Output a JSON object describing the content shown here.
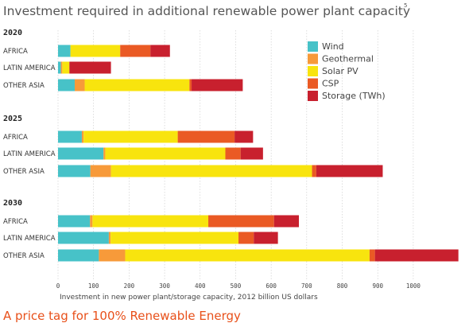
{
  "chart_data": {
    "type": "bar",
    "orientation": "horizontal",
    "stacked": true,
    "title": "Investment required in additional renewable power plant capacity",
    "footnote": "5",
    "xlabel": "Investment in new power plant/storage capacity, 2012 billion US dollars",
    "xlim": [
      0,
      1130
    ],
    "xticks": [
      "0",
      "100",
      "200",
      "300",
      "400",
      "500",
      "600",
      "700",
      "800",
      "900",
      "1000"
    ],
    "grid": true,
    "legend_position": "top-right",
    "series": [
      {
        "name": "Wind",
        "color": "#47c2c8"
      },
      {
        "name": "Geothermal",
        "color": "#f79a3a"
      },
      {
        "name": "Solar PV",
        "color": "#f8e40e"
      },
      {
        "name": "CSP",
        "color": "#ea5a24"
      },
      {
        "name": "Storage (TWh)",
        "color": "#c8202e"
      }
    ],
    "groups": [
      {
        "year": "2020",
        "rows": [
          {
            "region": "AFRICA",
            "values": [
              35,
              0,
              140,
              85,
              55
            ]
          },
          {
            "region": "LATIN AMERICA",
            "values": [
              8,
              4,
              20,
              0,
              117
            ]
          },
          {
            "region": "OTHER ASIA",
            "values": [
              47,
              28,
              295,
              6,
              144
            ]
          }
        ]
      },
      {
        "year": "2025",
        "rows": [
          {
            "region": "AFRICA",
            "values": [
              67,
              5,
              265,
              160,
              52
            ]
          },
          {
            "region": "LATIN AMERICA",
            "values": [
              128,
              5,
              338,
              43,
              63
            ]
          },
          {
            "region": "OTHER ASIA",
            "values": [
              91,
              58,
              566,
              12,
              187
            ]
          }
        ]
      },
      {
        "year": "2030",
        "rows": [
          {
            "region": "AFRICA",
            "values": [
              90,
              7,
              326,
              185,
              70
            ]
          },
          {
            "region": "LATIN AMERICA",
            "values": [
              143,
              5,
              360,
              43,
              68
            ]
          },
          {
            "region": "OTHER ASIA",
            "values": [
              115,
              74,
              688,
              15,
              235
            ]
          }
        ]
      }
    ]
  },
  "caption": "A price tag for 100% Renewable Energy"
}
